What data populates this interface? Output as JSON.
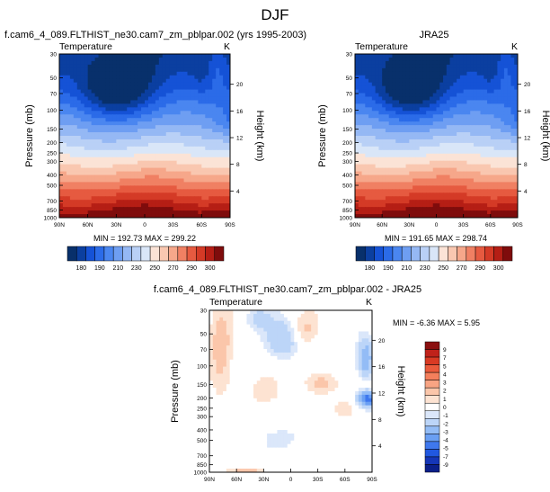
{
  "page_title": "DJF",
  "palette": {
    "main": [
      "#08306b",
      "#0b3fa0",
      "#1552d6",
      "#2b6be8",
      "#4a86f0",
      "#6e9ef2",
      "#95b8f4",
      "#b9d0f6",
      "#d9e6f8",
      "#fbe3d6",
      "#f9c7b0",
      "#f6a78a",
      "#f08063",
      "#e65a40",
      "#d43a26",
      "#b51e15",
      "#7f0c0c"
    ],
    "diff": [
      "#0b1f8a",
      "#1536b8",
      "#2158e0",
      "#3f78ee",
      "#6a9ff3",
      "#93bcf6",
      "#bcd5f8",
      "#dbe7fa",
      "#ffffff",
      "#fde3d2",
      "#fbc6aa",
      "#f8a483",
      "#f47f5c",
      "#ea5a3b",
      "#d93a23",
      "#c0221a",
      "#8b0f0f"
    ]
  },
  "chart_data": [
    {
      "type": "heatmap",
      "panel_label": "f.cam6_4_089.FLTHIST_ne30.cam7_zm_pblpar.002 (yrs 1995-2003)",
      "variable": "Temperature",
      "units": "K",
      "ylabel": "Pressure (mb)",
      "y2label": "Height (km)",
      "x_ticks": [
        "90N",
        "60N",
        "30N",
        "0",
        "30S",
        "60S",
        "90S"
      ],
      "y_ticks": [
        "30",
        "50",
        "70",
        "100",
        "150",
        "200",
        "250",
        "300",
        "400",
        "500",
        "700",
        "850",
        "1000"
      ],
      "y2_ticks": [
        "20",
        "16",
        "12",
        "8",
        "4"
      ],
      "x_range": [
        90,
        -90
      ],
      "y_range": [
        30,
        1000
      ],
      "y_log": true,
      "stats": "MIN = 192.73   MAX = 299.22",
      "colorbar_labels": [
        "180",
        "190",
        "210",
        "230",
        "250",
        "270",
        "290",
        "300"
      ],
      "variant": 0
    },
    {
      "type": "heatmap",
      "panel_label": "JRA25",
      "variable": "Temperature",
      "units": "K",
      "ylabel": "Pressure (mb)",
      "y2label": "Height (km)",
      "x_ticks": [
        "90N",
        "60N",
        "30N",
        "0",
        "30S",
        "60S",
        "90S"
      ],
      "y_ticks": [
        "30",
        "50",
        "70",
        "100",
        "150",
        "200",
        "250",
        "300",
        "400",
        "500",
        "700",
        "850",
        "1000"
      ],
      "y2_ticks": [
        "20",
        "16",
        "12",
        "8",
        "4"
      ],
      "x_range": [
        90,
        -90
      ],
      "y_range": [
        30,
        1000
      ],
      "y_log": true,
      "stats": "MIN = 191.65   MAX = 298.74",
      "colorbar_labels": [
        "180",
        "190",
        "210",
        "230",
        "250",
        "270",
        "290",
        "300"
      ],
      "variant": 1
    },
    {
      "type": "heatmap",
      "panel_label": "f.cam6_4_089.FLTHIST_ne30.cam7_zm_pblpar.002 - JRA25",
      "variable": "Temperature",
      "units": "K",
      "ylabel": "Pressure (mb)",
      "y2label": "Height (km)",
      "x_ticks": [
        "90N",
        "60N",
        "30N",
        "0",
        "30S",
        "60S",
        "90S"
      ],
      "y_ticks": [
        "30",
        "50",
        "70",
        "100",
        "150",
        "200",
        "250",
        "300",
        "400",
        "500",
        "700",
        "850",
        "1000"
      ],
      "y2_ticks": [
        "20",
        "16",
        "12",
        "8",
        "4"
      ],
      "x_range": [
        90,
        -90
      ],
      "y_range": [
        30,
        1000
      ],
      "y_log": true,
      "stats": "MIN = -6.36   MAX =  5.95",
      "colorbar_labels": [
        "9",
        "7",
        "5",
        "4",
        "3",
        "2",
        "1",
        "0",
        "-1",
        "-2",
        "-3",
        "-4",
        "-5",
        "-7",
        "-9"
      ]
    }
  ]
}
